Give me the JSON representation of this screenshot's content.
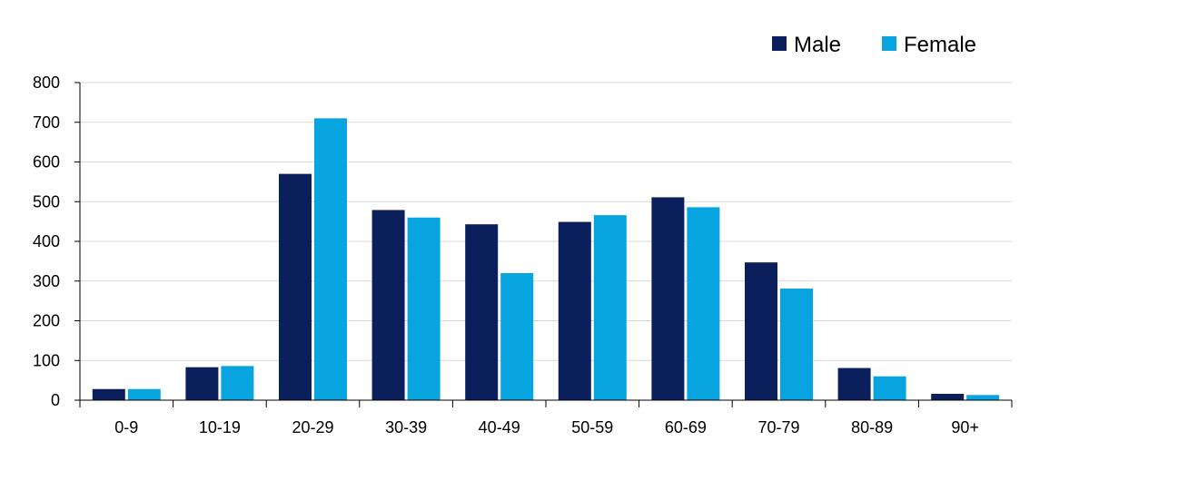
{
  "chart_data": {
    "type": "bar",
    "categories": [
      "0-9",
      "10-19",
      "20-29",
      "30-39",
      "40-49",
      "50-59",
      "60-69",
      "70-79",
      "80-89",
      "90+"
    ],
    "series": [
      {
        "name": "Male",
        "color": "#0b1f5c",
        "values": [
          28,
          83,
          570,
          479,
          443,
          449,
          511,
          347,
          81,
          16
        ]
      },
      {
        "name": "Female",
        "color": "#08a4e0",
        "values": [
          28,
          86,
          710,
          460,
          320,
          466,
          486,
          281,
          60,
          13
        ]
      }
    ],
    "title": "",
    "xlabel": "",
    "ylabel": "",
    "ylim": [
      0,
      800
    ],
    "yticks": [
      0,
      100,
      200,
      300,
      400,
      500,
      600,
      700,
      800
    ],
    "grid": true,
    "legend_position": "top-right"
  }
}
